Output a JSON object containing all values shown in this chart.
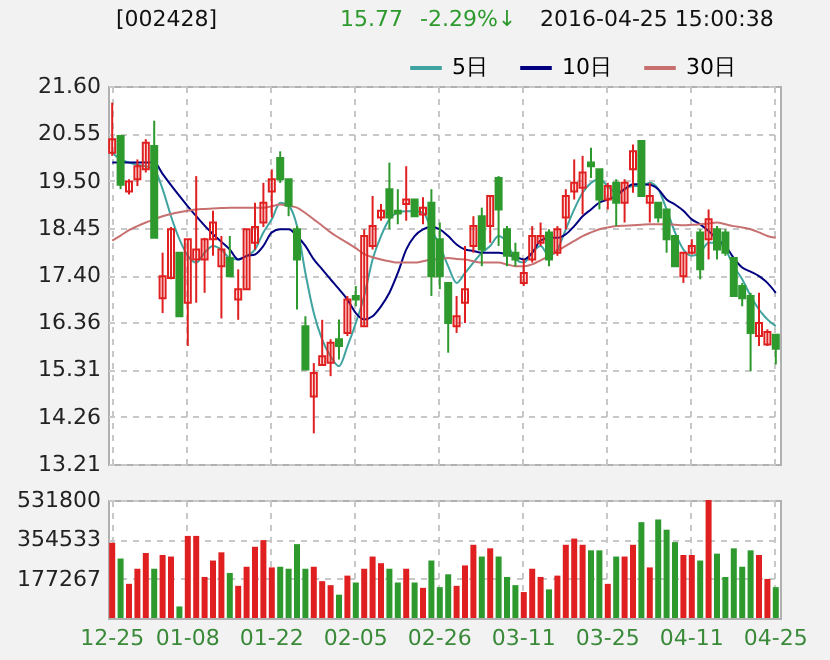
{
  "chart_data": [
    {
      "type": "candlestick",
      "title": "[002428]",
      "annotations": [
        "15.77",
        "-2.29%↓",
        "2016-04-25 15:00:38"
      ],
      "categories": [
        null,
        null,
        null,
        null,
        null,
        null,
        null,
        null,
        null,
        null,
        null,
        null,
        null,
        null,
        null,
        null,
        null,
        null,
        null,
        null,
        null,
        null,
        null,
        null,
        null,
        null,
        null,
        null,
        null,
        null,
        null,
        null,
        null,
        null,
        null,
        null,
        null,
        null,
        null,
        null,
        null,
        null,
        null,
        null,
        null,
        null,
        null,
        null,
        null,
        null,
        null,
        null,
        null,
        null,
        null,
        null,
        null,
        null,
        null,
        null,
        null,
        null,
        null,
        null,
        null,
        null,
        null,
        null,
        null,
        null,
        null,
        null,
        null,
        null,
        null,
        null,
        null,
        null,
        null,
        null
      ],
      "ohlc": [
        [
          20.12,
          21.23,
          20.05,
          20.42
        ],
        [
          20.49,
          20.49,
          19.31,
          19.41
        ],
        [
          19.26,
          19.53,
          19.19,
          19.48
        ],
        [
          19.53,
          19.97,
          19.38,
          19.82
        ],
        [
          19.75,
          20.42,
          19.68,
          20.34
        ],
        [
          20.27,
          20.83,
          18.23,
          18.23
        ],
        [
          16.89,
          17.9,
          16.56,
          17.38
        ],
        [
          17.34,
          18.47,
          17.31,
          18.42
        ],
        [
          17.9,
          17.9,
          16.49,
          16.49
        ],
        [
          16.79,
          18.2,
          15.83,
          18.2
        ],
        [
          17.75,
          19.6,
          16.79,
          17.97
        ],
        [
          17.75,
          18.23,
          17.01,
          18.2
        ],
        [
          18.2,
          18.83,
          17.83,
          18.57
        ],
        [
          17.6,
          18.27,
          16.44,
          17.97
        ],
        [
          17.78,
          18.27,
          17.38,
          17.38
        ],
        [
          16.86,
          17.53,
          16.41,
          17.09
        ],
        [
          17.09,
          18.42,
          17.09,
          18.42
        ],
        [
          18.12,
          19.01,
          17.97,
          18.47
        ],
        [
          18.57,
          19.45,
          18.47,
          19.01
        ],
        [
          19.26,
          19.75,
          18.68,
          19.53
        ],
        [
          20.0,
          20.15,
          19.45,
          19.53
        ],
        [
          19.53,
          19.53,
          18.71,
          18.94
        ],
        [
          18.42,
          18.49,
          16.64,
          17.75
        ],
        [
          16.27,
          16.49,
          15.31,
          15.31
        ],
        [
          14.71,
          15.45,
          13.89,
          15.23
        ],
        [
          15.41,
          16.41,
          15.41,
          15.6
        ],
        [
          15.46,
          15.98,
          15.16,
          15.9
        ],
        [
          15.98,
          16.42,
          15.53,
          15.83
        ],
        [
          16.12,
          16.94,
          16.05,
          16.86
        ],
        [
          16.94,
          17.16,
          16.71,
          16.86
        ],
        [
          16.27,
          18.42,
          16.27,
          18.27
        ],
        [
          18.05,
          19.16,
          17.97,
          18.49
        ],
        [
          18.68,
          18.98,
          18.61,
          18.83
        ],
        [
          19.31,
          19.9,
          18.42,
          18.68
        ],
        [
          18.83,
          19.31,
          18.53,
          18.77
        ],
        [
          18.98,
          19.82,
          18.61,
          19.08
        ],
        [
          19.08,
          19.08,
          18.71,
          18.71
        ],
        [
          18.75,
          19.13,
          18.53,
          18.9
        ],
        [
          19.01,
          19.31,
          16.94,
          17.38
        ],
        [
          18.2,
          18.57,
          17.09,
          17.38
        ],
        [
          17.23,
          17.23,
          15.68,
          16.34
        ],
        [
          16.27,
          16.94,
          16.12,
          16.49
        ],
        [
          16.79,
          18.05,
          16.34,
          17.09
        ],
        [
          18.05,
          18.71,
          17.9,
          18.49
        ],
        [
          18.71,
          18.9,
          17.6,
          17.97
        ],
        [
          18.49,
          19.16,
          18.12,
          19.16
        ],
        [
          19.56,
          19.6,
          18.05,
          18.86
        ],
        [
          18.42,
          18.49,
          17.6,
          17.83
        ],
        [
          17.9,
          18.12,
          17.6,
          17.75
        ],
        [
          17.23,
          17.75,
          17.16,
          17.45
        ],
        [
          17.75,
          18.49,
          17.68,
          18.27
        ],
        [
          18.12,
          18.57,
          18.05,
          18.27
        ],
        [
          18.35,
          18.42,
          17.6,
          17.75
        ],
        [
          17.9,
          18.49,
          17.83,
          18.42
        ],
        [
          18.68,
          19.31,
          18.42,
          19.16
        ],
        [
          19.26,
          19.97,
          19.08,
          19.45
        ],
        [
          19.34,
          20.05,
          18.75,
          19.68
        ],
        [
          19.9,
          20.23,
          19.56,
          19.82
        ],
        [
          19.75,
          19.75,
          18.86,
          19.08
        ],
        [
          19.08,
          19.45,
          18.86,
          19.38
        ],
        [
          19.45,
          19.53,
          18.49,
          19.01
        ],
        [
          19.01,
          19.53,
          18.57,
          19.45
        ],
        [
          19.75,
          20.3,
          19.23,
          20.15
        ],
        [
          20.38,
          20.38,
          19.16,
          19.16
        ],
        [
          19.01,
          19.45,
          18.57,
          19.16
        ],
        [
          19.01,
          19.01,
          18.57,
          18.68
        ],
        [
          18.86,
          18.86,
          17.9,
          18.2
        ],
        [
          18.27,
          18.27,
          17.6,
          17.6
        ],
        [
          17.38,
          17.9,
          17.23,
          17.9
        ],
        [
          17.9,
          18.2,
          17.86,
          18.05
        ],
        [
          18.35,
          18.42,
          17.31,
          17.53
        ],
        [
          18.2,
          18.86,
          17.75,
          18.64
        ],
        [
          18.42,
          18.49,
          17.75,
          17.97
        ],
        [
          18.35,
          18.42,
          17.83,
          17.9
        ],
        [
          17.78,
          17.78,
          16.94,
          16.94
        ],
        [
          17.16,
          17.23,
          16.71,
          16.89
        ],
        [
          16.94,
          17.01,
          15.27,
          16.12
        ],
        [
          16.05,
          17.01,
          15.83,
          16.34
        ],
        [
          15.86,
          16.2,
          15.83,
          16.14
        ],
        [
          16.08,
          16.08,
          15.42,
          15.77
        ]
      ],
      "colors": [
        "#e02020",
        "#2e9a2e",
        "#e02020",
        "#e02020",
        "#e02020",
        "#2e9a2e",
        "#e02020",
        "#e02020",
        "#2e9a2e",
        "#e02020",
        "#e02020",
        "#e02020",
        "#e02020",
        "#e02020",
        "#2e9a2e",
        "#e02020",
        "#e02020",
        "#e02020",
        "#e02020",
        "#e02020",
        "#2e9a2e",
        "#2e9a2e",
        "#2e9a2e",
        "#2e9a2e",
        "#e02020",
        "#e02020",
        "#e02020",
        "#2e9a2e",
        "#e02020",
        "#2e9a2e",
        "#e02020",
        "#e02020",
        "#e02020",
        "#2e9a2e",
        "#2e9a2e",
        "#e02020",
        "#2e9a2e",
        "#e02020",
        "#2e9a2e",
        "#2e9a2e",
        "#2e9a2e",
        "#e02020",
        "#e02020",
        "#e02020",
        "#2e9a2e",
        "#e02020",
        "#2e9a2e",
        "#2e9a2e",
        "#2e9a2e",
        "#e02020",
        "#e02020",
        "#e02020",
        "#2e9a2e",
        "#e02020",
        "#e02020",
        "#e02020",
        "#e02020",
        "#2e9a2e",
        "#2e9a2e",
        "#e02020",
        "#2e9a2e",
        "#e02020",
        "#e02020",
        "#2e9a2e",
        "#e02020",
        "#2e9a2e",
        "#2e9a2e",
        "#2e9a2e",
        "#e02020",
        "#e02020",
        "#2e9a2e",
        "#e02020",
        "#2e9a2e",
        "#2e9a2e",
        "#2e9a2e",
        "#2e9a2e",
        "#2e9a2e",
        "#e02020",
        "#e02020",
        "#2e9a2e"
      ],
      "series": [
        {
          "name": "5日",
          "type": "line",
          "color": "#3fa3a0",
          "values": [
            20.12,
            19.97,
            19.9,
            19.85,
            19.82,
            19.75,
            19.31,
            18.71,
            18.2,
            17.83,
            17.68,
            17.9,
            18.05,
            17.97,
            17.78,
            17.75,
            17.83,
            17.97,
            18.35,
            18.64,
            19.01,
            18.94,
            18.49,
            17.45,
            16.56,
            15.97,
            15.6,
            15.38,
            15.82,
            16.34,
            16.94,
            17.75,
            18.27,
            18.64,
            18.79,
            18.82,
            18.82,
            18.79,
            18.42,
            18.05,
            17.6,
            17.23,
            17.45,
            17.68,
            17.9,
            18.05,
            18.27,
            18.12,
            17.75,
            17.68,
            17.9,
            18.05,
            17.83,
            17.97,
            18.42,
            18.86,
            19.23,
            19.45,
            19.53,
            19.38,
            19.23,
            19.31,
            19.38,
            19.38,
            19.45,
            19.31,
            18.86,
            18.35,
            17.97,
            17.83,
            17.9,
            18.12,
            18.12,
            17.97,
            17.6,
            17.31,
            16.94,
            16.64,
            16.42,
            16.27
          ]
        },
        {
          "name": "10日",
          "type": "line",
          "color": "#000080",
          "values": [
            19.9,
            19.9,
            19.9,
            19.9,
            19.9,
            19.9,
            19.65,
            19.4,
            19.16,
            18.93,
            18.71,
            18.5,
            18.31,
            18.14,
            17.97,
            17.75,
            17.83,
            17.86,
            18.05,
            18.35,
            18.42,
            18.42,
            18.27,
            18.05,
            17.75,
            17.53,
            17.31,
            17.09,
            16.86,
            16.56,
            16.42,
            16.49,
            16.71,
            17.01,
            17.45,
            17.97,
            18.27,
            18.42,
            18.47,
            18.42,
            18.27,
            18.08,
            17.97,
            17.94,
            17.9,
            17.9,
            17.9,
            17.86,
            17.81,
            17.75,
            17.9,
            18.17,
            18.23,
            18.23,
            18.31,
            18.49,
            18.71,
            18.86,
            19.01,
            19.08,
            19.16,
            19.31,
            19.42,
            19.42,
            19.41,
            19.31,
            19.08,
            18.97,
            18.83,
            18.64,
            18.53,
            18.38,
            18.2,
            18.05,
            17.78,
            17.57,
            17.48,
            17.38,
            17.23,
            17.01
          ]
        },
        {
          "name": "30日",
          "type": "line",
          "color": "#c87070",
          "values": [
            18.17,
            18.28,
            18.4,
            18.49,
            18.57,
            18.64,
            18.71,
            18.76,
            18.8,
            18.83,
            18.86,
            18.87,
            18.88,
            18.89,
            18.9,
            18.9,
            18.9,
            18.9,
            18.9,
            18.93,
            18.97,
            18.94,
            18.9,
            18.78,
            18.64,
            18.5,
            18.35,
            18.23,
            18.12,
            18.0,
            17.87,
            17.8,
            17.75,
            17.71,
            17.68,
            17.68,
            17.68,
            17.71,
            17.75,
            17.76,
            17.78,
            17.76,
            17.75,
            17.71,
            17.68,
            17.68,
            17.68,
            17.64,
            17.6,
            17.6,
            17.64,
            17.73,
            17.83,
            17.94,
            18.05,
            18.16,
            18.27,
            18.35,
            18.42,
            18.46,
            18.49,
            18.5,
            18.51,
            18.52,
            18.53,
            18.53,
            18.53,
            18.52,
            18.51,
            18.52,
            18.53,
            18.55,
            18.57,
            18.53,
            18.49,
            18.46,
            18.42,
            18.35,
            18.27,
            18.23
          ]
        }
      ],
      "ylim": [
        13.21,
        21.6
      ],
      "yticks": [
        13.21,
        14.26,
        15.31,
        16.36,
        {
          "value": 17.4,
          "label": "17.40"
        },
        18.45,
        {
          "value": 19.5,
          "label": "19.50"
        },
        20.55,
        {
          "value": 21.6,
          "label": "21.60"
        }
      ],
      "grid": true,
      "legend": "top right",
      "tick_labels": "y"
    },
    {
      "type": "bar",
      "categories": [
        "12-25",
        null,
        null,
        null,
        null,
        null,
        null,
        null,
        null,
        "01-08",
        null,
        null,
        null,
        null,
        null,
        null,
        null,
        null,
        null,
        "01-22",
        null,
        null,
        null,
        null,
        null,
        null,
        null,
        null,
        null,
        "02-05",
        null,
        null,
        null,
        null,
        null,
        null,
        null,
        null,
        null,
        "02-26",
        null,
        null,
        null,
        null,
        null,
        null,
        null,
        null,
        null,
        "03-11",
        null,
        null,
        null,
        null,
        null,
        null,
        null,
        null,
        null,
        "03-25",
        null,
        null,
        null,
        null,
        null,
        null,
        null,
        null,
        null,
        "04-11",
        null,
        null,
        null,
        null,
        null,
        null,
        null,
        null,
        null,
        "04-25"
      ],
      "values": [
        339000,
        268000,
        154000,
        222000,
        293000,
        222000,
        284000,
        277000,
        52000,
        370000,
        370000,
        185000,
        259000,
        296000,
        203000,
        145000,
        231000,
        321000,
        351000,
        228000,
        231000,
        222000,
        333000,
        222000,
        231000,
        166000,
        148000,
        105000,
        191000,
        160000,
        222000,
        277000,
        247000,
        222000,
        160000,
        222000,
        160000,
        136000,
        259000,
        139000,
        197000,
        145000,
        237000,
        330000,
        277000,
        314000,
        277000,
        185000,
        148000,
        117000,
        222000,
        185000,
        129000,
        191000,
        330000,
        358000,
        330000,
        305000,
        305000,
        154000,
        277000,
        277000,
        330000,
        432000,
        228000,
        444000,
        398000,
        342000,
        284000,
        284000,
        259000,
        531800,
        290000,
        185000,
        314000,
        231000,
        305000,
        284000,
        176000,
        139000
      ],
      "colors": [
        "#e02020",
        "#2e9a2e",
        "#e02020",
        "#e02020",
        "#e02020",
        "#2e9a2e",
        "#e02020",
        "#e02020",
        "#2e9a2e",
        "#e02020",
        "#e02020",
        "#e02020",
        "#e02020",
        "#e02020",
        "#2e9a2e",
        "#e02020",
        "#e02020",
        "#e02020",
        "#e02020",
        "#e02020",
        "#2e9a2e",
        "#2e9a2e",
        "#2e9a2e",
        "#2e9a2e",
        "#e02020",
        "#e02020",
        "#e02020",
        "#2e9a2e",
        "#e02020",
        "#2e9a2e",
        "#e02020",
        "#e02020",
        "#e02020",
        "#2e9a2e",
        "#2e9a2e",
        "#e02020",
        "#2e9a2e",
        "#e02020",
        "#2e9a2e",
        "#2e9a2e",
        "#2e9a2e",
        "#e02020",
        "#e02020",
        "#e02020",
        "#2e9a2e",
        "#e02020",
        "#2e9a2e",
        "#2e9a2e",
        "#2e9a2e",
        "#e02020",
        "#e02020",
        "#e02020",
        "#2e9a2e",
        "#e02020",
        "#e02020",
        "#e02020",
        "#e02020",
        "#2e9a2e",
        "#2e9a2e",
        "#e02020",
        "#2e9a2e",
        "#e02020",
        "#e02020",
        "#2e9a2e",
        "#e02020",
        "#2e9a2e",
        "#2e9a2e",
        "#2e9a2e",
        "#e02020",
        "#e02020",
        "#2e9a2e",
        "#e02020",
        "#2e9a2e",
        "#2e9a2e",
        "#2e9a2e",
        "#2e9a2e",
        "#2e9a2e",
        "#e02020",
        "#e02020",
        "#2e9a2e"
      ],
      "ylim": [
        0,
        531800
      ],
      "yticks": [
        177267,
        354533,
        531800
      ],
      "grid": true
    }
  ]
}
